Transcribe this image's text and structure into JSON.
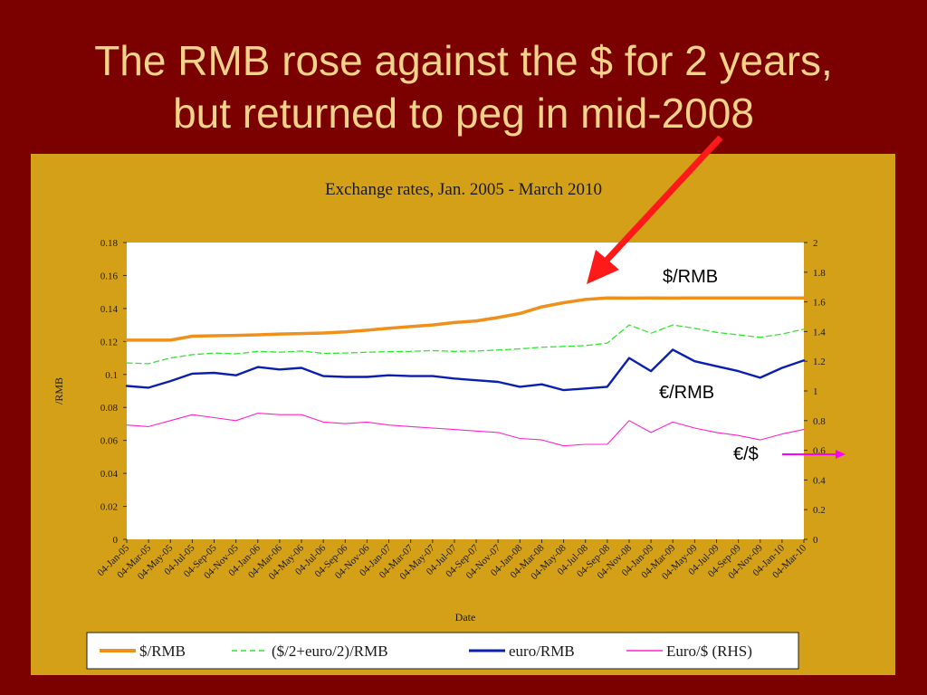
{
  "slide": {
    "title_line1": "The RMB rose against the $ for 2 years,",
    "title_line2": "but returned to peg in mid-2008"
  },
  "colors": {
    "background": "#7b0000",
    "title": "#f3d28a",
    "panel": "#d4a017",
    "plot_area": "#ffffff",
    "arrow_red": "#ff1a1a",
    "arrow_magenta": "#ff00ff"
  },
  "chart_data": {
    "type": "line",
    "title": "Exchange rates, Jan. 2005 - March 2010",
    "xlabel": "Date",
    "ylabel": "/RMB",
    "ylabel_right": "",
    "ylim": [
      0,
      0.18
    ],
    "y2lim": [
      0,
      2
    ],
    "yticks": [
      "0",
      "0.02",
      "0.04",
      "0.06",
      "0.08",
      "0.1",
      "0.12",
      "0.14",
      "0.16",
      "0.18"
    ],
    "y2ticks": [
      "0",
      "0.2",
      "0.4",
      "0.6",
      "0.8",
      "1",
      "1.2",
      "1.4",
      "1.6",
      "1.8",
      "2"
    ],
    "grid": false,
    "legend_position": "bottom",
    "categories": [
      "04-Jan-05",
      "04-Mar-05",
      "04-May-05",
      "04-Jul-05",
      "04-Sep-05",
      "04-Nov-05",
      "04-Jan-06",
      "04-Mar-06",
      "04-May-06",
      "04-Jul-06",
      "04-Sep-06",
      "04-Nov-06",
      "04-Jan-07",
      "04-Mar-07",
      "04-May-07",
      "04-Jul-07",
      "04-Sep-07",
      "04-Nov-07",
      "04-Jan-08",
      "04-Mar-08",
      "04-May-08",
      "04-Jul-08",
      "04-Sep-08",
      "04-Nov-08",
      "04-Jan-09",
      "04-Mar-09",
      "04-May-09",
      "04-Jul-09",
      "04-Sep-09",
      "04-Nov-09",
      "04-Jan-10",
      "04-Mar-10"
    ],
    "series": [
      {
        "name": "$/RMB",
        "axis": "left",
        "color": "#f0901c",
        "dash": "solid",
        "values": [
          0.1208,
          0.1208,
          0.1208,
          0.1232,
          0.1235,
          0.1237,
          0.124,
          0.1245,
          0.1248,
          0.1251,
          0.1258,
          0.1268,
          0.128,
          0.129,
          0.13,
          0.1315,
          0.1325,
          0.1345,
          0.137,
          0.141,
          0.1435,
          0.1455,
          0.1464,
          0.1463,
          0.1464,
          0.1463,
          0.1464,
          0.1464,
          0.1464,
          0.1464,
          0.1464,
          0.1464
        ]
      },
      {
        "name": "($/2+euro/2)/RMB",
        "axis": "left",
        "color": "#2ee82e",
        "dash": "dashed",
        "values": [
          0.107,
          0.1065,
          0.11,
          0.112,
          0.113,
          0.1125,
          0.114,
          0.1135,
          0.1142,
          0.1128,
          0.113,
          0.1135,
          0.1138,
          0.114,
          0.1145,
          0.114,
          0.1142,
          0.1148,
          0.1155,
          0.1165,
          0.117,
          0.1175,
          0.119,
          0.13,
          0.125,
          0.13,
          0.128,
          0.1255,
          0.124,
          0.1225,
          0.1245,
          0.1275
        ]
      },
      {
        "name": "euro/RMB",
        "axis": "left",
        "color": "#0a1fb0",
        "dash": "solid",
        "values": [
          0.093,
          0.092,
          0.096,
          0.1005,
          0.101,
          0.0995,
          0.1045,
          0.103,
          0.104,
          0.099,
          0.0985,
          0.0985,
          0.0995,
          0.099,
          0.099,
          0.0975,
          0.0965,
          0.0955,
          0.0925,
          0.094,
          0.0905,
          0.0915,
          0.0925,
          0.11,
          0.102,
          0.115,
          0.108,
          0.105,
          0.102,
          0.098,
          0.104,
          0.1085
        ]
      },
      {
        "name": "Euro/$ (RHS)",
        "axis": "right",
        "color": "#ff22cc",
        "dash": "solid",
        "values": [
          0.77,
          0.76,
          0.8,
          0.84,
          0.82,
          0.8,
          0.85,
          0.84,
          0.84,
          0.79,
          0.78,
          0.79,
          0.77,
          0.76,
          0.75,
          0.74,
          0.73,
          0.72,
          0.68,
          0.67,
          0.63,
          0.64,
          0.64,
          0.8,
          0.72,
          0.79,
          0.75,
          0.72,
          0.7,
          0.67,
          0.71,
          0.74
        ]
      }
    ],
    "annotations": [
      {
        "label": "$/RMB"
      },
      {
        "label": "€/RMB"
      },
      {
        "label": "€/$"
      }
    ]
  }
}
